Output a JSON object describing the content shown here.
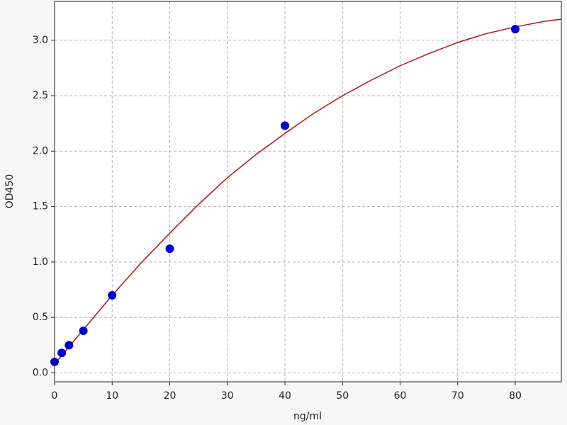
{
  "chart_data": {
    "type": "scatter",
    "x_label": "ng/ml",
    "y_label": "OD450",
    "xlim": [
      0,
      88
    ],
    "ylim": [
      -0.08,
      3.35
    ],
    "xticks": [
      0,
      10,
      20,
      30,
      40,
      50,
      60,
      70,
      80
    ],
    "yticks": [
      {
        "value": 0,
        "label": "0.0"
      },
      0.5,
      {
        "value": 1,
        "label": "1.0"
      },
      1.5,
      {
        "value": 2,
        "label": "2.0"
      },
      2.5,
      {
        "value": 3,
        "label": "3.0"
      }
    ],
    "grid": true,
    "series": [
      {
        "type": "line",
        "color": "#b22222",
        "x": [
          0,
          5,
          10,
          15,
          20,
          25,
          30,
          35,
          40,
          45,
          50,
          55,
          60,
          65,
          70,
          75,
          80,
          85,
          88
        ],
        "values": [
          0.08,
          0.39,
          0.7,
          0.99,
          1.26,
          1.52,
          1.76,
          1.97,
          2.16,
          2.34,
          2.5,
          2.64,
          2.77,
          2.88,
          2.98,
          3.06,
          3.12,
          3.17,
          3.19
        ]
      },
      {
        "type": "scatter",
        "color": "#0000cc",
        "x": [
          0,
          1.25,
          2.5,
          5,
          10,
          20,
          40,
          80
        ],
        "values": [
          0.1,
          0.18,
          0.25,
          0.38,
          0.7,
          1.12,
          2.23,
          3.1
        ]
      }
    ]
  }
}
